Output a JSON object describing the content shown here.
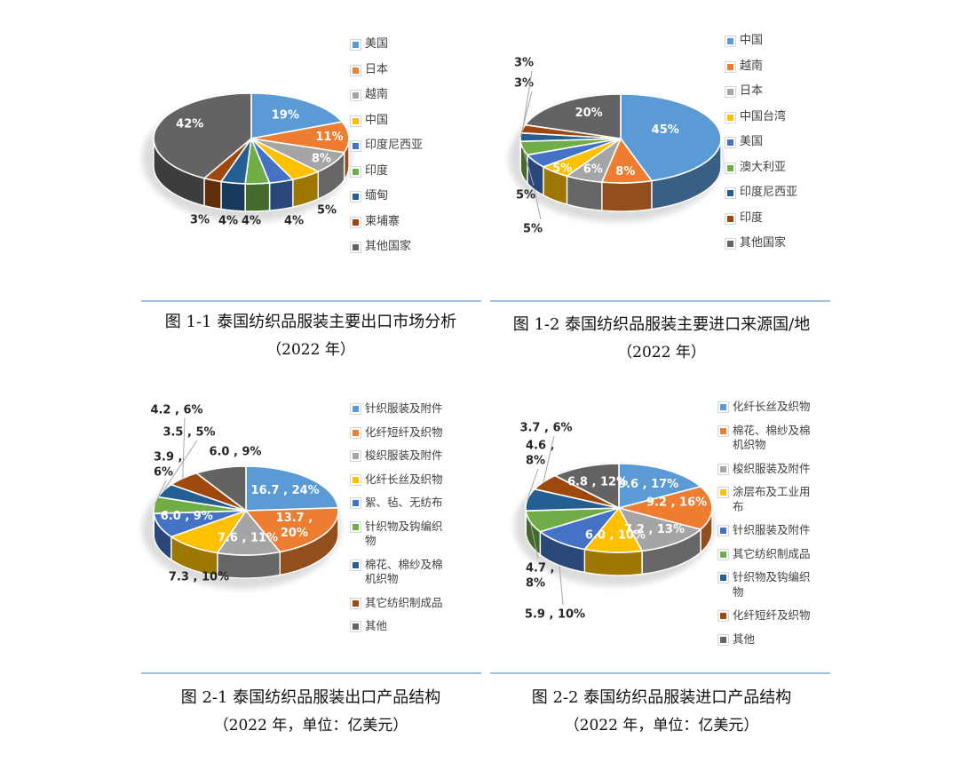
{
  "colors": {
    "divider": "#9CC3E6",
    "label_inside": "#FFFFFF",
    "label_outside": "#262626",
    "legend_text": "#404040",
    "leader_line": "#A6A6A6",
    "background": "#FFFFFF"
  },
  "chart_data": [
    {
      "type": "pie",
      "style": "3d",
      "legend_position": "right",
      "caption": [
        "图 1-1 泰国纺织品服装主要出口市场分析",
        "（2022 年）"
      ],
      "slices": [
        {
          "name": "美国",
          "pct": 19,
          "label": "19%",
          "color": "#5B9BD5",
          "label_inside": true
        },
        {
          "name": "日本",
          "pct": 11,
          "label": "11%",
          "color": "#ED7D31",
          "label_inside": true
        },
        {
          "name": "越南",
          "pct": 8,
          "label": "8%",
          "color": "#A5A5A5",
          "label_inside": true
        },
        {
          "name": "中国",
          "pct": 5,
          "label": "5%",
          "color": "#FFC000",
          "label_inside": false
        },
        {
          "name": "印度尼西亚",
          "pct": 4,
          "label": "4%",
          "color": "#4472C4",
          "label_inside": false
        },
        {
          "name": "印度",
          "pct": 4,
          "label": "4%",
          "color": "#70AD47",
          "label_inside": false
        },
        {
          "name": "缅甸",
          "pct": 4,
          "label": "4%",
          "color": "#255E91",
          "label_inside": false
        },
        {
          "name": "柬埔寨",
          "pct": 3,
          "label": "3%",
          "color": "#9E480E",
          "label_inside": false
        },
        {
          "name": "其他国家",
          "pct": 42,
          "label": "42%",
          "color": "#636363",
          "label_inside": true
        }
      ]
    },
    {
      "type": "pie",
      "style": "3d",
      "legend_position": "right",
      "caption": [
        "图 1-2 泰国纺织品服装主要进口来源国/地",
        "（2022 年）"
      ],
      "slices": [
        {
          "name": "中国",
          "pct": 45,
          "label": "45%",
          "color": "#5B9BD5",
          "label_inside": true
        },
        {
          "name": "越南",
          "pct": 8,
          "label": "8%",
          "color": "#ED7D31",
          "label_inside": true
        },
        {
          "name": "日本",
          "pct": 6,
          "label": "6%",
          "color": "#A5A5A5",
          "label_inside": true
        },
        {
          "name": "中国台湾",
          "pct": 5,
          "label": "5%",
          "color": "#FFC000",
          "label_inside": true
        },
        {
          "name": "美国",
          "pct": 5,
          "label": "5%",
          "color": "#4472C4",
          "label_inside": false
        },
        {
          "name": "澳大利亚",
          "pct": 5,
          "label": "5%",
          "color": "#70AD47",
          "label_inside": false
        },
        {
          "name": "印度尼西亚",
          "pct": 3,
          "label": "3%",
          "color": "#255E91",
          "label_inside": false
        },
        {
          "name": "印度",
          "pct": 3,
          "label": "3%",
          "color": "#9E480E",
          "label_inside": false
        },
        {
          "name": "其他国家",
          "pct": 20,
          "label": "20%",
          "color": "#636363",
          "label_inside": true
        }
      ]
    },
    {
      "type": "pie",
      "style": "3d",
      "legend_position": "right",
      "unit": "亿美元",
      "caption": [
        "图 2-1 泰国纺织品服装出口产品结构",
        "（2022 年，单位：亿美元）"
      ],
      "slices": [
        {
          "name": "针织服装及附件",
          "value": 16.7,
          "pct": 24,
          "label": "16.7 , 24%",
          "color": "#5B9BD5",
          "label_inside": true
        },
        {
          "name": "化纤短纤及织物",
          "value": 13.7,
          "pct": 20,
          "label": "13.7 , 20%",
          "color": "#ED7D31",
          "label_inside": true
        },
        {
          "name": "梭织服装及附件",
          "value": 7.6,
          "pct": 11,
          "label": "7.6 , 11%",
          "color": "#A5A5A5",
          "label_inside": true
        },
        {
          "name": "化纤长丝及织物",
          "value": 7.3,
          "pct": 10,
          "label": "7.3 , 10%",
          "color": "#FFC000",
          "label_inside": false
        },
        {
          "name": "絮、毡、无纺布",
          "value": 6.0,
          "pct": 9,
          "label": "6.0 , 9%",
          "color": "#4472C4",
          "label_inside": true
        },
        {
          "name": "针织物及钩编织物",
          "value": 3.9,
          "pct": 6,
          "label": "3.9 , 6%",
          "color": "#70AD47",
          "label_inside": false
        },
        {
          "name": "棉花、棉纱及棉机织物",
          "value": 3.5,
          "pct": 5,
          "label": "3.5 , 5%",
          "color": "#255E91",
          "label_inside": false
        },
        {
          "name": "其它纺织制成品",
          "value": 4.2,
          "pct": 6,
          "label": "4.2 , 6%",
          "color": "#9E480E",
          "label_inside": false
        },
        {
          "name": "其他",
          "value": 6.0,
          "pct": 9,
          "label": "6.0 , 9%",
          "color": "#636363",
          "label_inside": false
        }
      ]
    },
    {
      "type": "pie",
      "style": "3d",
      "legend_position": "right",
      "unit": "亿美元",
      "caption": [
        "图 2-2 泰国纺织品服装进口产品结构",
        "（2022 年，单位：亿美元）"
      ],
      "slices": [
        {
          "name": "化纤长丝及织物",
          "value": 9.6,
          "pct": 17,
          "label": "9.6 , 17%",
          "color": "#5B9BD5",
          "label_inside": true
        },
        {
          "name": "棉花、棉纱及棉机织物",
          "value": 9.2,
          "pct": 16,
          "label": "9.2 , 16%",
          "color": "#ED7D31",
          "label_inside": true
        },
        {
          "name": "梭织服装及附件",
          "value": 7.2,
          "pct": 13,
          "label": "7.2 , 13%",
          "color": "#A5A5A5",
          "label_inside": true
        },
        {
          "name": "涂层布及工业用布",
          "value": 6.0,
          "pct": 10,
          "label": "6.0 , 10%",
          "color": "#FFC000",
          "label_inside": true
        },
        {
          "name": "针织服装及附件",
          "value": 5.9,
          "pct": 10,
          "label": "5.9 , 10%",
          "color": "#4472C4",
          "label_inside": false
        },
        {
          "name": "其它纺织制成品",
          "value": 4.7,
          "pct": 8,
          "label": "4.7 , 8%",
          "color": "#70AD47",
          "label_inside": false
        },
        {
          "name": "针织物及钩编织物",
          "value": 4.6,
          "pct": 8,
          "label": "4.6 , 8%",
          "color": "#255E91",
          "label_inside": false
        },
        {
          "name": "化纤短纤及织物",
          "value": 3.7,
          "pct": 6,
          "label": "3.7 , 6%",
          "color": "#9E480E",
          "label_inside": false
        },
        {
          "name": "其他",
          "value": 6.8,
          "pct": 12,
          "label": "6.8 , 12%",
          "color": "#636363",
          "label_inside": true
        }
      ]
    }
  ]
}
